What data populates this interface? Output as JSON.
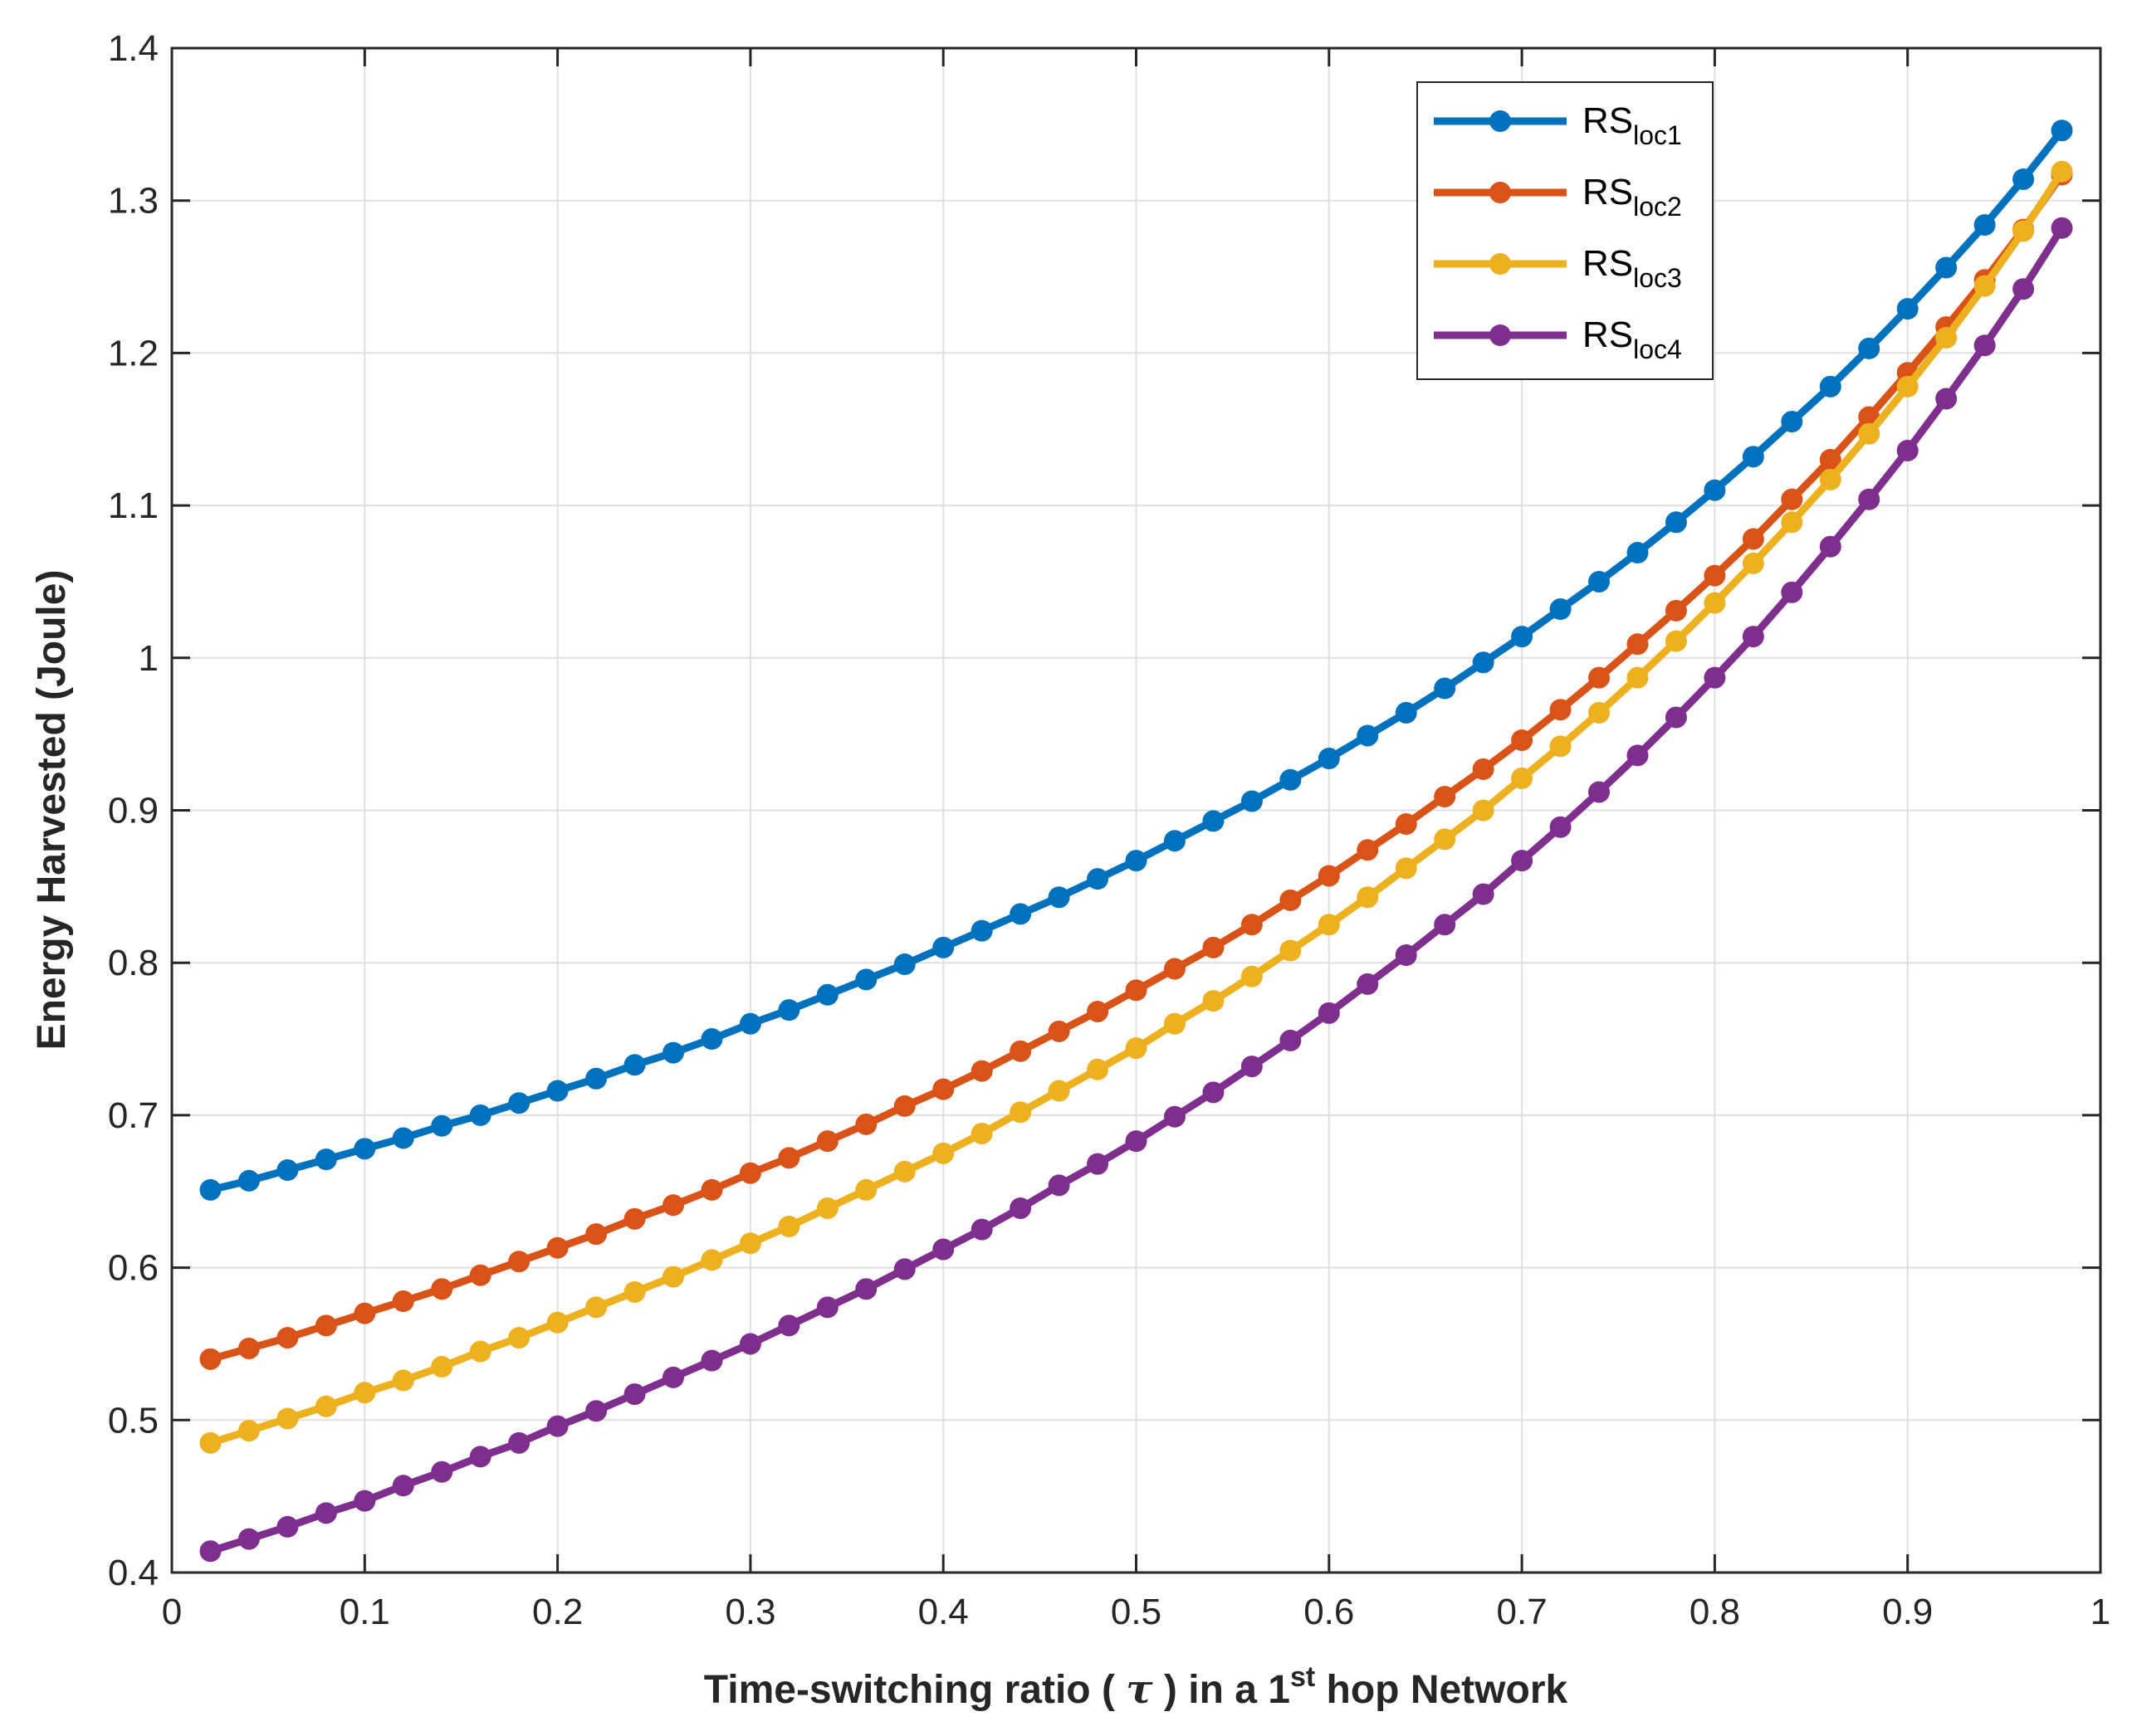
{
  "chart_data": {
    "type": "line",
    "title": "",
    "xlabel": {
      "prefix": "Time-switching ratio ( ",
      "symbol": "τ",
      "middle": " ) in a 1",
      "superscript": "st",
      "suffix": " hop Network"
    },
    "ylabel": "Energy Harvested (Joule)",
    "xlim": [
      0,
      1
    ],
    "ylim": [
      0.4,
      1.4
    ],
    "xticks": [
      "0",
      "0.1",
      "0.2",
      "0.3",
      "0.4",
      "0.5",
      "0.6",
      "0.7",
      "0.8",
      "0.9",
      "1"
    ],
    "yticks": [
      "0.4",
      "0.5",
      "0.6",
      "0.7",
      "0.8",
      "0.9",
      "1",
      "1.1",
      "1.2",
      "1.3",
      "1.4"
    ],
    "grid": true,
    "legend_position": "top-right",
    "x": [
      0.02,
      0.04,
      0.06,
      0.08,
      0.1,
      0.12,
      0.14,
      0.16,
      0.18,
      0.2,
      0.22,
      0.24,
      0.26,
      0.28,
      0.3,
      0.32,
      0.34,
      0.36,
      0.38,
      0.4,
      0.42,
      0.44,
      0.46,
      0.48,
      0.5,
      0.52,
      0.54,
      0.56,
      0.58,
      0.6,
      0.62,
      0.64,
      0.66,
      0.68,
      0.7,
      0.72,
      0.74,
      0.76,
      0.78,
      0.8,
      0.82,
      0.84,
      0.86,
      0.88,
      0.9,
      0.92,
      0.94,
      0.96,
      0.98
    ],
    "series": [
      {
        "name": "RS",
        "subscript": "loc1",
        "color": "#0072BD",
        "values": [
          0.651,
          0.657,
          0.664,
          0.671,
          0.678,
          0.685,
          0.693,
          0.7,
          0.708,
          0.716,
          0.724,
          0.733,
          0.741,
          0.75,
          0.76,
          0.769,
          0.779,
          0.789,
          0.799,
          0.81,
          0.821,
          0.832,
          0.843,
          0.855,
          0.867,
          0.88,
          0.893,
          0.906,
          0.92,
          0.934,
          0.949,
          0.964,
          0.98,
          0.997,
          1.014,
          1.032,
          1.05,
          1.069,
          1.089,
          1.11,
          1.132,
          1.155,
          1.178,
          1.203,
          1.229,
          1.256,
          1.284,
          1.314,
          1.346
        ]
      },
      {
        "name": "RS",
        "subscript": "loc2",
        "color": "#D95319",
        "values": [
          0.54,
          0.547,
          0.554,
          0.562,
          0.57,
          0.578,
          0.586,
          0.595,
          0.604,
          0.613,
          0.622,
          0.632,
          0.641,
          0.651,
          0.662,
          0.672,
          0.683,
          0.694,
          0.706,
          0.717,
          0.729,
          0.742,
          0.755,
          0.768,
          0.782,
          0.796,
          0.81,
          0.825,
          0.841,
          0.857,
          0.874,
          0.891,
          0.909,
          0.927,
          0.946,
          0.966,
          0.987,
          1.009,
          1.031,
          1.054,
          1.078,
          1.104,
          1.13,
          1.158,
          1.187,
          1.217,
          1.248,
          1.281,
          1.317
        ]
      },
      {
        "name": "RS",
        "subscript": "loc3",
        "color": "#EDB120",
        "values": [
          0.485,
          0.493,
          0.501,
          0.509,
          0.518,
          0.526,
          0.535,
          0.545,
          0.554,
          0.564,
          0.574,
          0.584,
          0.594,
          0.605,
          0.616,
          0.627,
          0.639,
          0.651,
          0.663,
          0.675,
          0.688,
          0.702,
          0.716,
          0.73,
          0.744,
          0.76,
          0.775,
          0.791,
          0.808,
          0.825,
          0.843,
          0.862,
          0.881,
          0.9,
          0.921,
          0.942,
          0.964,
          0.987,
          1.011,
          1.036,
          1.062,
          1.089,
          1.117,
          1.147,
          1.178,
          1.21,
          1.244,
          1.28,
          1.319
        ]
      },
      {
        "name": "RS",
        "subscript": "loc4",
        "color": "#7E2F8E",
        "values": [
          0.414,
          0.422,
          0.43,
          0.439,
          0.447,
          0.457,
          0.466,
          0.476,
          0.485,
          0.496,
          0.506,
          0.517,
          0.528,
          0.539,
          0.55,
          0.562,
          0.574,
          0.586,
          0.599,
          0.612,
          0.625,
          0.639,
          0.654,
          0.668,
          0.683,
          0.699,
          0.715,
          0.732,
          0.749,
          0.767,
          0.786,
          0.805,
          0.825,
          0.845,
          0.867,
          0.889,
          0.912,
          0.936,
          0.961,
          0.987,
          1.014,
          1.043,
          1.073,
          1.104,
          1.136,
          1.17,
          1.205,
          1.242,
          1.282
        ]
      }
    ]
  }
}
